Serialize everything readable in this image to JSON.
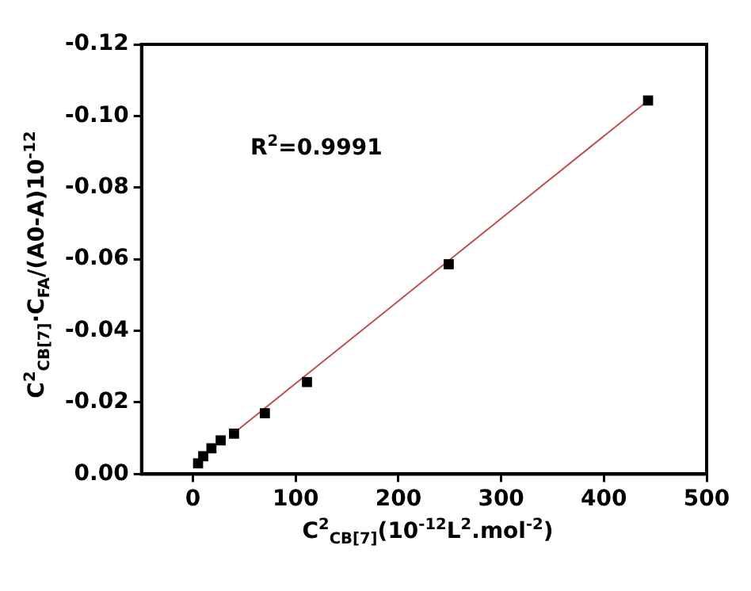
{
  "chart_data": {
    "type": "scatter",
    "xlabel": "C$^{2}$$_{CB[7]}$(10$^{-12}$L$^{2}$.mol$^{-2}$)",
    "ylabel": "C$^{2}$$_{CB[7]}$·C$_{FA}$/(A0-A)10$^{-12}$",
    "annotations": [
      "R$^{2}$=0.9991"
    ],
    "x": [
      5,
      10,
      18,
      27,
      40,
      70,
      111,
      249,
      443
    ],
    "series": [
      {
        "color": "#000000",
        "marker": "square",
        "values": [
          -0.003,
          -0.005,
          -0.0072,
          -0.0094,
          -0.0113,
          -0.017,
          -0.0257,
          -0.0586,
          -0.1043
        ]
      },
      {
        "type": "line",
        "color": "#c0504d",
        "marker": "none",
        "x": [
          40,
          443
        ],
        "values": [
          -0.0115,
          -0.1043
        ]
      }
    ],
    "xlim": [
      -50,
      500
    ],
    "xticks": [
      0,
      100,
      200,
      300,
      400,
      500
    ],
    "ylim": [
      0,
      -0.12
    ],
    "yticks": [
      {
        "value": 0,
        "label": "0.00"
      },
      {
        "value": -0.02,
        "label": "-0.02"
      },
      {
        "value": -0.04,
        "label": "-0.04"
      },
      {
        "value": -0.06,
        "label": "-0.06"
      },
      {
        "value": -0.08,
        "label": "-0.08"
      },
      {
        "value": -0.1,
        "label": "-0.10"
      },
      {
        "value": -0.12,
        "label": "-0.12"
      }
    ],
    "grid": false,
    "legend": false
  }
}
